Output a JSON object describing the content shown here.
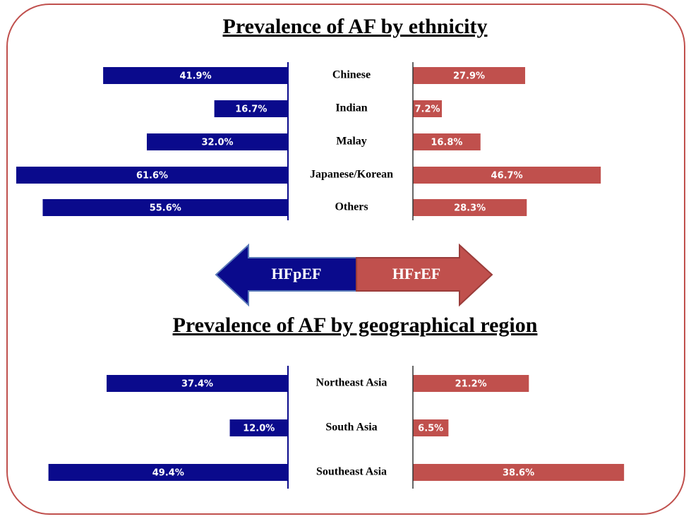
{
  "chart_data": [
    {
      "type": "butterfly",
      "title": "Prevalence of AF by ethnicity",
      "categories": [
        "Chinese",
        "Indian",
        "Malay",
        "Japanese/Korean",
        "Others"
      ],
      "series": [
        {
          "name": "HFpEF",
          "color": "#0a0a8c",
          "values": [
            41.9,
            16.7,
            32.0,
            61.6,
            55.6
          ],
          "value_labels": [
            "41.9%",
            "16.7%",
            "32.0%",
            "61.6%",
            "55.6%"
          ]
        },
        {
          "name": "HFrEF",
          "color": "#c0504d",
          "values": [
            27.9,
            7.2,
            16.8,
            46.7,
            28.3
          ],
          "value_labels": [
            "27.9%",
            "7.2%",
            "16.8%",
            "46.7%",
            "28.3%"
          ]
        }
      ]
    },
    {
      "type": "butterfly",
      "title": "Prevalence of AF by geographical region",
      "categories": [
        "Northeast Asia",
        "South Asia",
        "Southeast Asia"
      ],
      "series": [
        {
          "color": "#0a0a8c",
          "values": [
            37.4,
            12.0,
            49.4
          ],
          "value_labels": [
            "37.4%",
            "12.0%",
            "49.4%"
          ]
        },
        {
          "color": "#c0504d",
          "values": [
            21.2,
            6.5,
            38.6
          ],
          "value_labels": [
            "21.2%",
            "6.5%",
            "38.6%"
          ]
        }
      ]
    }
  ]
}
